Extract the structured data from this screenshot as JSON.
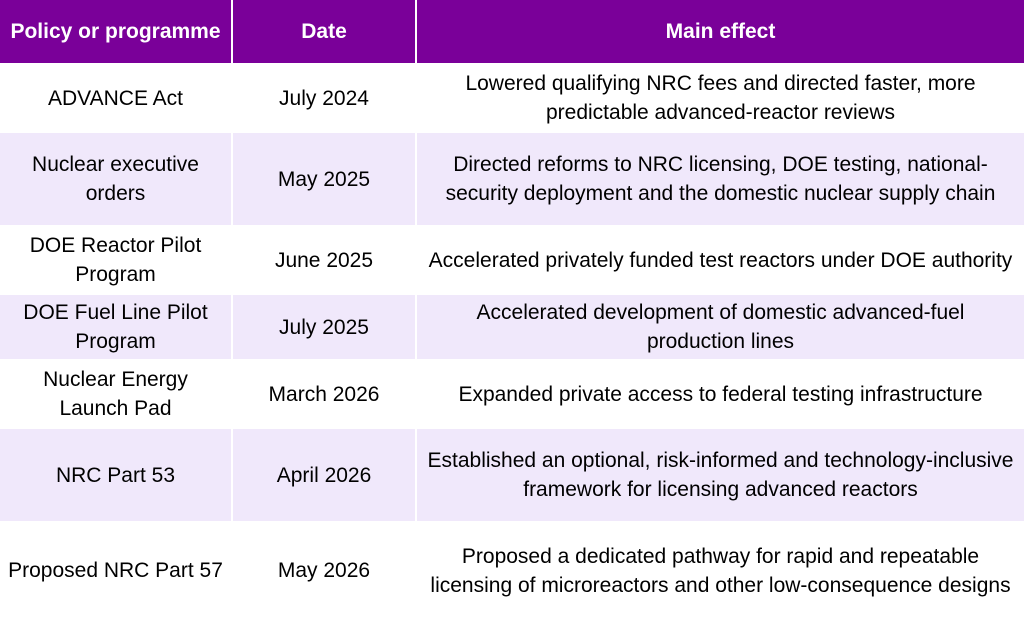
{
  "header": {
    "col1": "Policy or programme",
    "col2": "Date",
    "col3": "Main effect"
  },
  "rows": [
    {
      "policy": "ADVANCE Act",
      "date": "July 2024",
      "effect": "Lowered qualifying NRC fees and directed faster, more predictable advanced-reactor reviews"
    },
    {
      "policy": "Nuclear executive orders",
      "date": "May 2025",
      "effect": "Directed reforms to NRC licensing, DOE testing, national-security deployment and the domestic nuclear supply chain"
    },
    {
      "policy": "DOE Reactor Pilot Program",
      "date": "June 2025",
      "effect": "Accelerated privately funded test reactors under DOE authority"
    },
    {
      "policy": "DOE Fuel Line Pilot Program",
      "date": "July 2025",
      "effect": "Accelerated development of domestic advanced-fuel production lines"
    },
    {
      "policy": "Nuclear Energy Launch Pad",
      "date": "March 2026",
      "effect": "Expanded private access to federal testing infrastructure"
    },
    {
      "policy": "NRC Part 53",
      "date": "April 2026",
      "effect": "Established an optional, risk-informed and technology-inclusive framework for licensing advanced reactors"
    },
    {
      "policy": "Proposed NRC Part 57",
      "date": "May 2026",
      "effect": "Proposed a dedicated pathway for rapid and repeatable licensing of microreactors and other low-consequence designs"
    }
  ],
  "colors": {
    "header_bg": "#7a0099",
    "header_text": "#ffffff",
    "row_tint": "#f0e8fb",
    "row_white": "#ffffff"
  }
}
